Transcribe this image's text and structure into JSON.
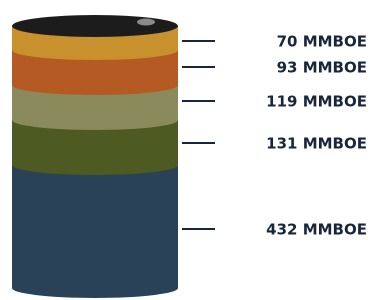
{
  "layers": [
    {
      "label": "70 MMBOE"
    },
    {
      "label": "93 MMBOE"
    },
    {
      "label": "119 MMBOE"
    },
    {
      "label": "131 MMBOE"
    },
    {
      "label": "432 MMBOE"
    }
  ]
}
